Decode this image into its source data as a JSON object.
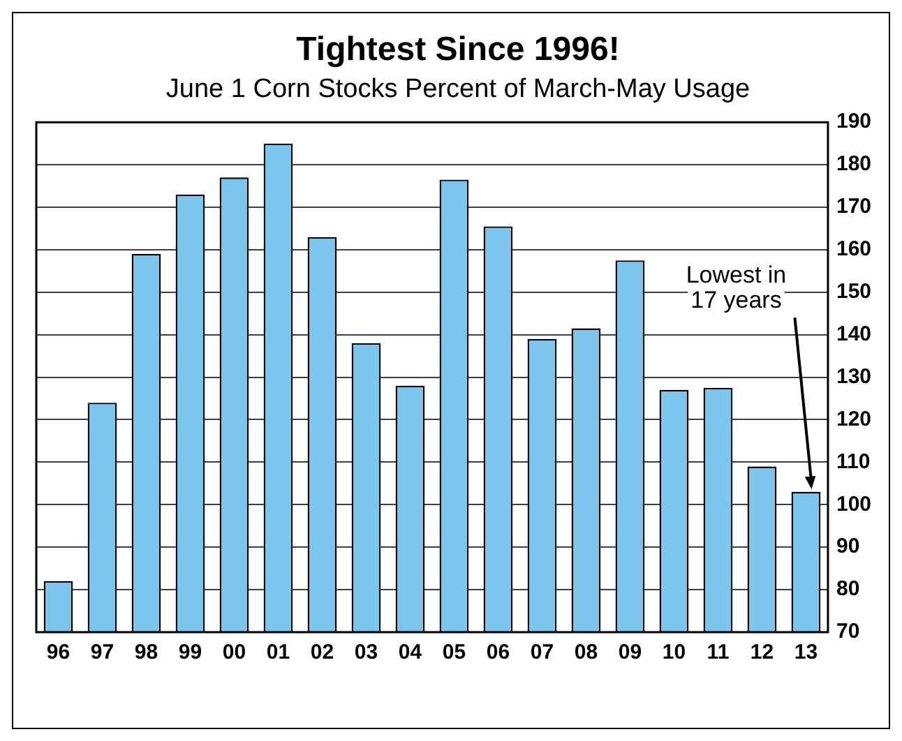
{
  "chart_data": {
    "type": "bar",
    "title": "Tightest Since 1996!",
    "subtitle": "June 1 Corn Stocks Percent of March-May Usage",
    "categories": [
      "96",
      "97",
      "98",
      "99",
      "00",
      "01",
      "02",
      "03",
      "04",
      "05",
      "06",
      "07",
      "08",
      "09",
      "10",
      "11",
      "12",
      "13"
    ],
    "values": [
      82,
      124,
      159,
      173,
      177,
      185,
      163,
      138,
      128,
      176.5,
      165.5,
      139,
      141.5,
      157.5,
      127,
      127.5,
      109,
      103
    ],
    "color": "#7cc5ec",
    "ylim": [
      70,
      190
    ],
    "yticks": [
      70,
      80,
      90,
      100,
      110,
      120,
      130,
      140,
      150,
      160,
      170,
      180,
      190
    ],
    "grid": "y",
    "annotations": [
      {
        "text": "Lowest in\n17 years",
        "x": "13",
        "y": 103
      }
    ]
  }
}
